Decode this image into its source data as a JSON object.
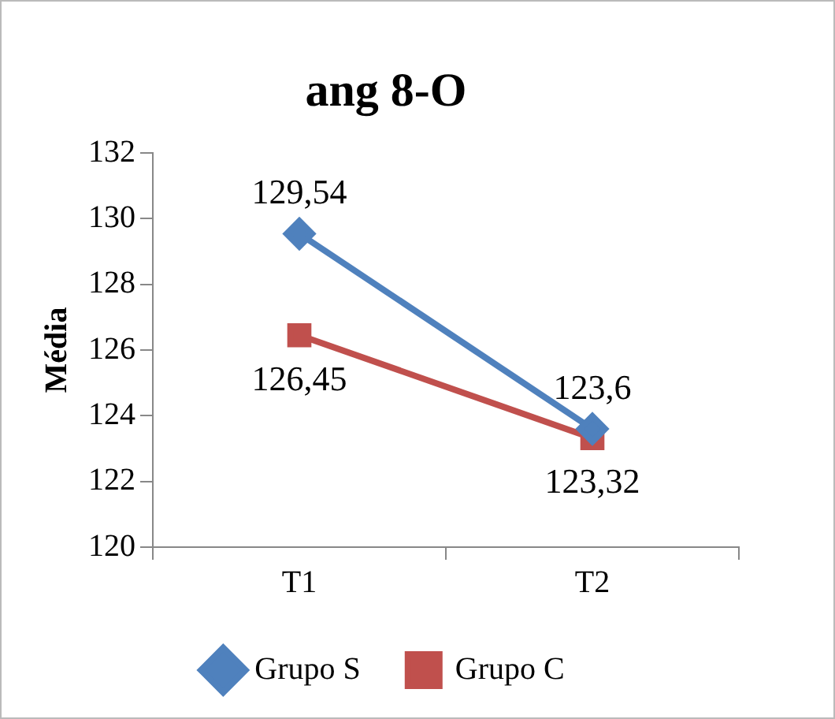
{
  "chart_data": {
    "type": "line",
    "title": "ang 8-O",
    "ylabel": "Média",
    "categories": [
      "T1",
      "T2"
    ],
    "series": [
      {
        "name": "Grupo S",
        "color": "#4f81bd",
        "values": [
          129.54,
          123.6
        ],
        "marker": "diamond",
        "value_labels": [
          "129,54",
          "123,6"
        ]
      },
      {
        "name": "Grupo C",
        "color": "#c0504d",
        "values": [
          126.45,
          123.32
        ],
        "marker": "square",
        "value_labels": [
          "126,45",
          "123,32"
        ]
      }
    ],
    "ylim": [
      120,
      132
    ],
    "yticks": [
      120,
      122,
      124,
      126,
      128,
      130,
      132
    ],
    "grid": false,
    "legend": "bottom"
  }
}
